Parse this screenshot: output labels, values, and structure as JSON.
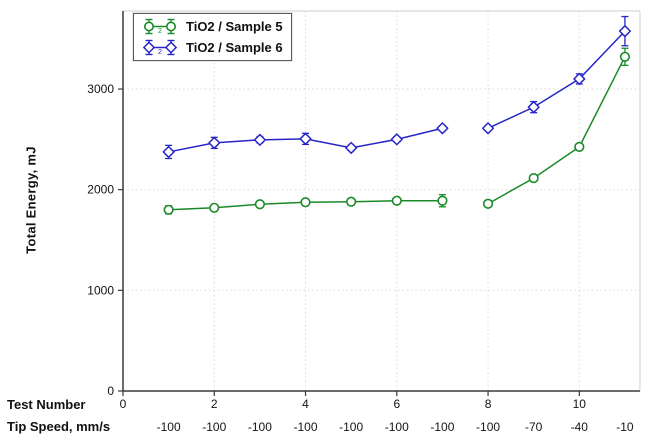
{
  "axis_labels": {
    "y": "Total Energy, mJ",
    "x_row1": "Test Number",
    "x_row2": "Tip Speed, mm/s"
  },
  "legend": {
    "items": [
      {
        "label": "TiO2 / Sample 5",
        "marker": "circle",
        "color": "#1a8a28",
        "sub": "2"
      },
      {
        "label": "TiO2 / Sample 6",
        "marker": "diamond",
        "color": "#2525c8",
        "sub": "2"
      }
    ]
  },
  "chart_data": {
    "type": "line",
    "title": "",
    "xlabel": "Test Number",
    "xlabel2": "Tip Speed, mm/s",
    "ylabel": "Total Energy, mJ",
    "x": [
      1,
      2,
      3,
      4,
      5,
      6,
      7,
      8,
      9,
      10,
      11
    ],
    "series": [
      {
        "name": "TiO2 / Sample 5",
        "marker": "circle",
        "color": "#1a8a28",
        "values": [
          1800,
          1820,
          1855,
          1875,
          1880,
          1890,
          1890,
          1860,
          2115,
          2425,
          3320
        ],
        "errors": [
          40,
          20,
          15,
          15,
          15,
          15,
          60,
          15,
          20,
          20,
          85
        ]
      },
      {
        "name": "TiO2 / Sample 6",
        "marker": "diamond",
        "color": "#2525c8",
        "values": [
          2375,
          2465,
          2495,
          2505,
          2415,
          2500,
          2610,
          2610,
          2820,
          3100,
          3575
        ],
        "errors": [
          65,
          55,
          30,
          55,
          25,
          25,
          25,
          15,
          55,
          50,
          145
        ]
      }
    ],
    "segments": [
      [
        0,
        6
      ],
      [
        7,
        10
      ]
    ],
    "xticks": [
      0,
      2,
      4,
      6,
      8,
      10
    ],
    "yticks": [
      0,
      1000,
      2000,
      3000
    ],
    "tip_speeds": [
      "-100",
      "-100",
      "-100",
      "-100",
      "-100",
      "-100",
      "-100",
      "-100",
      "-70",
      "-40",
      "-10"
    ],
    "xlim": [
      0,
      11.33
    ],
    "ylim": [
      0,
      3775
    ],
    "grid": true,
    "legend_position": "top-left"
  },
  "colors": {
    "background": "#ffffff",
    "grid": "#d9d9d9",
    "frame": "#cfcfcf",
    "axis": "#3a3a3a",
    "text": "#141414"
  }
}
